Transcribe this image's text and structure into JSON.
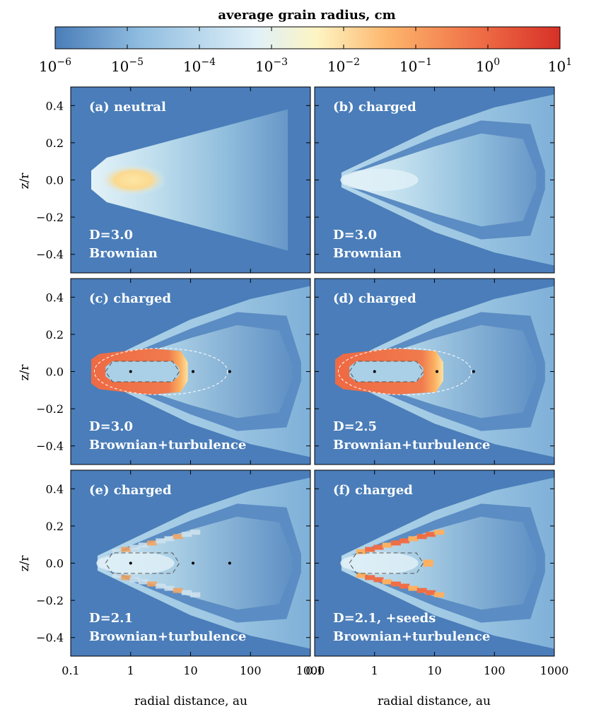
{
  "colorbar": {
    "title": "average grain radius, cm",
    "ticks": [
      {
        "value": -6,
        "base": "10",
        "exp": "−6"
      },
      {
        "value": -5,
        "base": "10",
        "exp": "−5"
      },
      {
        "value": -4,
        "base": "10",
        "exp": "−4"
      },
      {
        "value": -3,
        "base": "10",
        "exp": "−3"
      },
      {
        "value": -2,
        "base": "10",
        "exp": "−2"
      },
      {
        "value": -1,
        "base": "10",
        "exp": "−1"
      },
      {
        "value": 0,
        "base": "10",
        "exp": "0"
      },
      {
        "value": 1,
        "base": "10",
        "exp": "1"
      }
    ],
    "log_range": [
      -6,
      1
    ],
    "colormap": [
      "#4a7db9",
      "#90bde0",
      "#e0f1f8",
      "#fdf4c2",
      "#fdb56c",
      "#ef6e46",
      "#d73027"
    ]
  },
  "axes": {
    "xlabel": "radial distance, au",
    "ylabel": "z/r",
    "x_ticks": [
      "0.1",
      "1",
      "10",
      "100",
      "1000"
    ],
    "x_tick_values": [
      0.1,
      1,
      10,
      100,
      1000
    ],
    "xlim": [
      0.1,
      1000
    ],
    "xscale": "log",
    "y_ticks": [
      "0.4",
      "0.2",
      "0.0",
      "−0.2",
      "−0.4"
    ],
    "y_tick_values": [
      0.4,
      0.2,
      0.0,
      -0.2,
      -0.4
    ],
    "ylim": [
      -0.5,
      0.5
    ]
  },
  "chart_data": [
    {
      "type": "heatmap",
      "panel": "a",
      "label": "(a) neutral",
      "param": "D=3.0",
      "process": "Brownian",
      "core_log_radius": -2.3,
      "outer_band": false,
      "red_core": false,
      "dots_x": [],
      "inner_contour": false
    },
    {
      "type": "heatmap",
      "panel": "b",
      "label": "(b) charged",
      "param": "D=3.0",
      "process": "Brownian",
      "core_log_radius": -3.7,
      "outer_band": true,
      "red_core": false,
      "dots_x": [],
      "inner_contour": false
    },
    {
      "type": "heatmap",
      "panel": "c",
      "label": "(c) charged",
      "param": "D=3.0",
      "process": "Brownian+turbulence",
      "core_log_radius": -3.6,
      "outer_band": true,
      "red_core": true,
      "red_outer_au": 9,
      "dots_x": [
        1,
        11,
        45
      ],
      "inner_contour": true
    },
    {
      "type": "heatmap",
      "panel": "d",
      "label": "(d) charged",
      "param": "D=2.5",
      "process": "Brownian+turbulence",
      "core_log_radius": -3.6,
      "outer_band": true,
      "red_core": true,
      "red_outer_au": 14,
      "dots_x": [
        1,
        11,
        45
      ],
      "inner_contour": true
    },
    {
      "type": "heatmap",
      "panel": "e",
      "label": "(e) charged",
      "param": "D=2.1",
      "process": "Brownian+turbulence",
      "core_log_radius": -3.9,
      "outer_band": true,
      "red_core": false,
      "surface_hot": "light",
      "dots_x": [
        1,
        11,
        45
      ],
      "inner_contour": true
    },
    {
      "type": "heatmap",
      "panel": "f",
      "label": "(f) charged",
      "param": "D=2.1, +seeds",
      "process": "Brownian+turbulence",
      "core_log_radius": -3.8,
      "outer_band": true,
      "red_core": false,
      "surface_hot": "strong",
      "dots_x": [],
      "inner_contour": true
    }
  ]
}
